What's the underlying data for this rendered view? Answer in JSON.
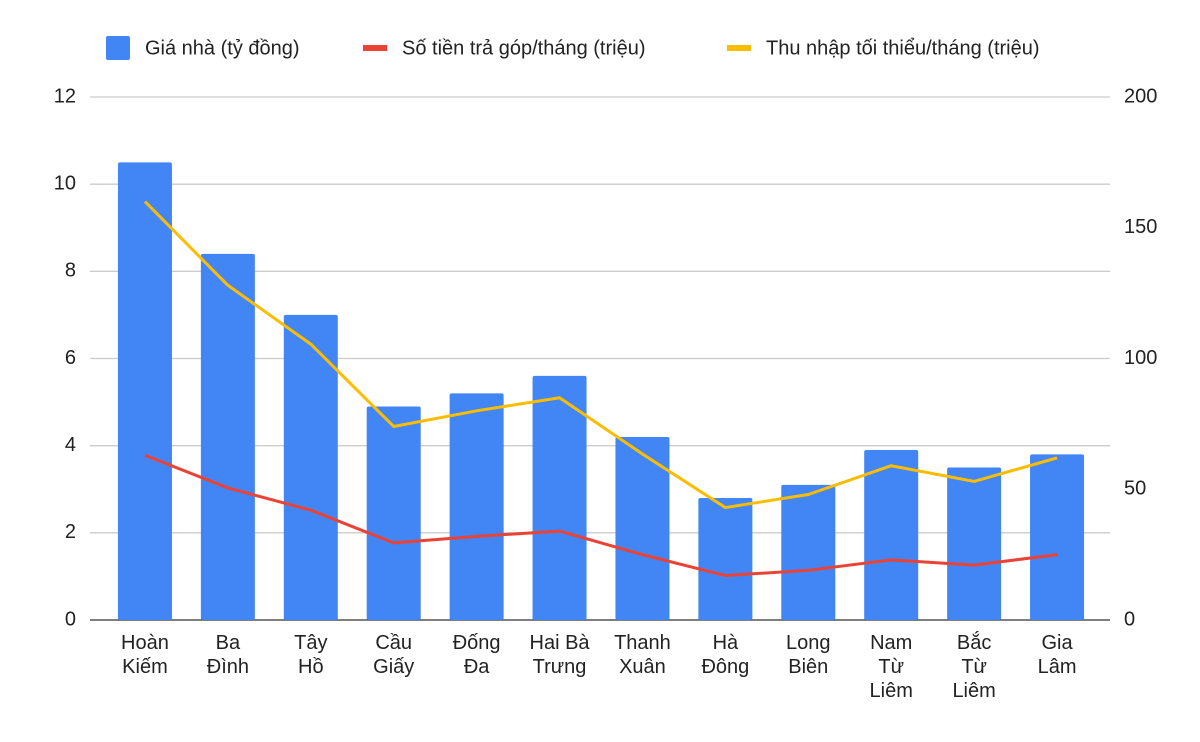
{
  "chart_data": {
    "type": "bar_line",
    "categories": [
      "Hoàn\nKiếm",
      "Ba\nĐình",
      "Tây\nHồ",
      "Cầu\nGiấy",
      "Đống\nĐa",
      "Hai Bà\nTrưng",
      "Thanh\nXuân",
      "Hà\nĐông",
      "Long\nBiên",
      "Nam\nTừ\nLiêm",
      "Bắc\nTừ\nLiêm",
      "Gia\nLâm"
    ],
    "series": [
      {
        "name": "Giá nhà (tỷ đồng)",
        "type": "bar",
        "color": "#4285f4",
        "values": [
          10.5,
          8.4,
          7.0,
          4.9,
          5.2,
          5.6,
          4.2,
          2.8,
          3.1,
          3.9,
          3.5,
          3.8
        ]
      },
      {
        "name": "Số tiền trả góp/tháng (triệu)",
        "type": "line",
        "axis": "y2",
        "color": "#ea4335",
        "values": [
          63,
          50.5,
          42,
          29.5,
          32,
          34,
          25,
          17,
          19,
          23,
          21,
          25
        ]
      },
      {
        "name": "Thu nhập tối thiểu/tháng (triệu)",
        "type": "line",
        "axis": "y2",
        "color": "#fbbc04",
        "values": [
          160,
          128,
          105.5,
          74,
          80,
          85,
          63.5,
          43,
          48,
          59,
          53,
          62
        ]
      }
    ],
    "ylim": [
      0,
      12
    ],
    "yticks": [
      0,
      2,
      4,
      6,
      8,
      10,
      12
    ],
    "y2lim": [
      0,
      200
    ],
    "y2ticks": [
      0,
      50,
      100,
      150,
      200
    ],
    "grid": true,
    "legend": "top"
  }
}
